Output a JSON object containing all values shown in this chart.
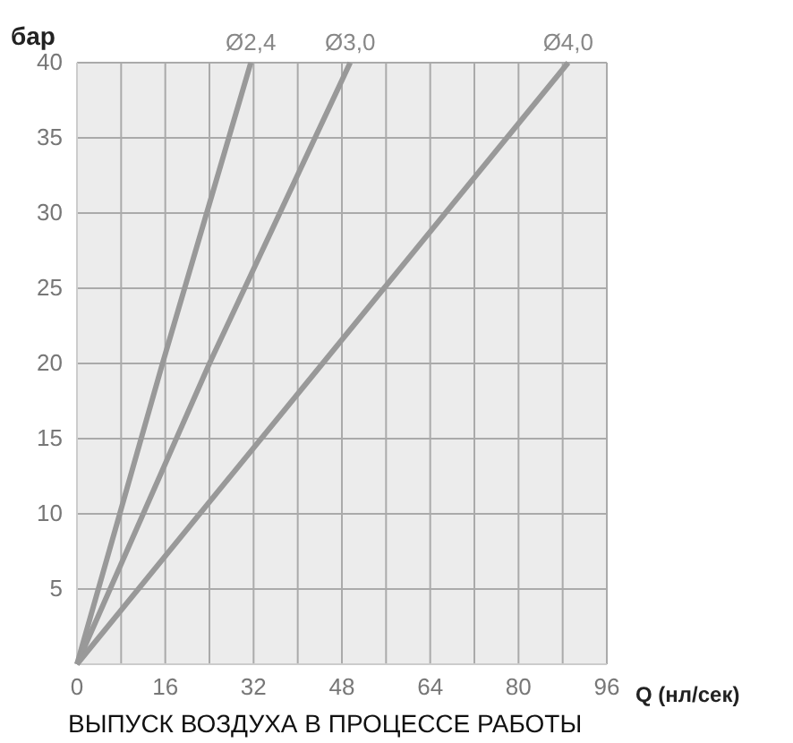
{
  "chart_data": {
    "type": "line",
    "ylabel": "бар",
    "xlabel": "Q (нл/сек)",
    "annotations": [
      "ВЫПУСК ВОЗДУХА В ПРОЦЕССЕ РАБОТЫ"
    ],
    "xlim": [
      0,
      96
    ],
    "ylim": [
      0,
      40
    ],
    "xticks": [
      0,
      {
        "value": 8,
        "label": null
      },
      16,
      {
        "value": 24,
        "label": null
      },
      32,
      {
        "value": 40,
        "label": null
      },
      48,
      {
        "value": 56,
        "label": null
      },
      64,
      {
        "value": 72,
        "label": null
      },
      80,
      {
        "value": 88,
        "label": null
      },
      96
    ],
    "yticks": [
      5,
      10,
      15,
      20,
      25,
      30,
      35,
      40
    ],
    "grid": true,
    "marker": "none",
    "line_style": "solid",
    "series": [
      {
        "name": "Ø2,4",
        "color": "#999999",
        "x": [
          0,
          15.5,
          31.5
        ],
        "values": [
          0,
          20,
          40
        ]
      },
      {
        "name": "Ø3,0",
        "color": "#999999",
        "x": [
          0,
          24,
          49.5
        ],
        "values": [
          0,
          20,
          40
        ]
      },
      {
        "name": "Ø4,0",
        "color": "#999999",
        "x": [
          0,
          44.5,
          89
        ],
        "values": [
          0,
          20,
          40
        ]
      }
    ]
  }
}
